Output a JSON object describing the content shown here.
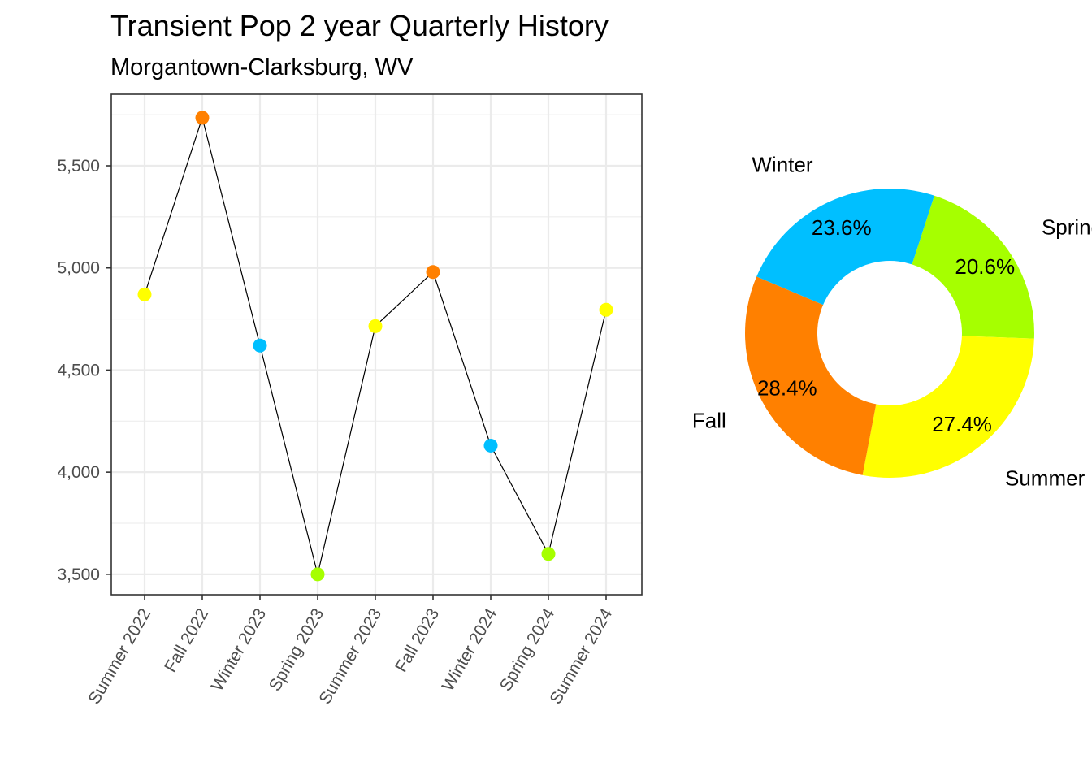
{
  "header": {
    "title": "Transient Pop 2 year Quarterly History",
    "subtitle": "Morgantown-Clarksburg, WV"
  },
  "colors": {
    "Summer": "#FFFF00",
    "Fall": "#FF8000",
    "Winter": "#00BFFF",
    "Spring": "#A6FF00",
    "line": "#000000",
    "grid": "#ebebeb",
    "border": "#333333"
  },
  "chart_data": [
    {
      "type": "line",
      "categories": [
        "Summer 2022",
        "Fall 2022",
        "Winter 2023",
        "Spring 2023",
        "Summer 2023",
        "Fall 2023",
        "Winter 2024",
        "Spring 2024",
        "Summer 2024"
      ],
      "seasons": [
        "Summer",
        "Fall",
        "Winter",
        "Spring",
        "Summer",
        "Fall",
        "Winter",
        "Spring",
        "Summer"
      ],
      "values": [
        4870,
        5735,
        4620,
        3500,
        4715,
        4980,
        4130,
        3600,
        4795
      ],
      "ylim": [
        3400,
        5850
      ],
      "yticks": [
        3500,
        4000,
        4500,
        5000,
        5500
      ],
      "ytick_labels": [
        "3,500",
        "4,000",
        "4,500",
        "5,000",
        "5,500"
      ],
      "grid": true
    },
    {
      "type": "pie",
      "style": "donut",
      "slices": [
        {
          "label": "Spring",
          "pct": "20.6%",
          "value": 20.6
        },
        {
          "label": "Summer",
          "pct": "27.4%",
          "value": 27.4
        },
        {
          "label": "Fall",
          "pct": "28.4%",
          "value": 28.4
        },
        {
          "label": "Winter",
          "pct": "23.6%",
          "value": 23.6
        }
      ]
    }
  ]
}
